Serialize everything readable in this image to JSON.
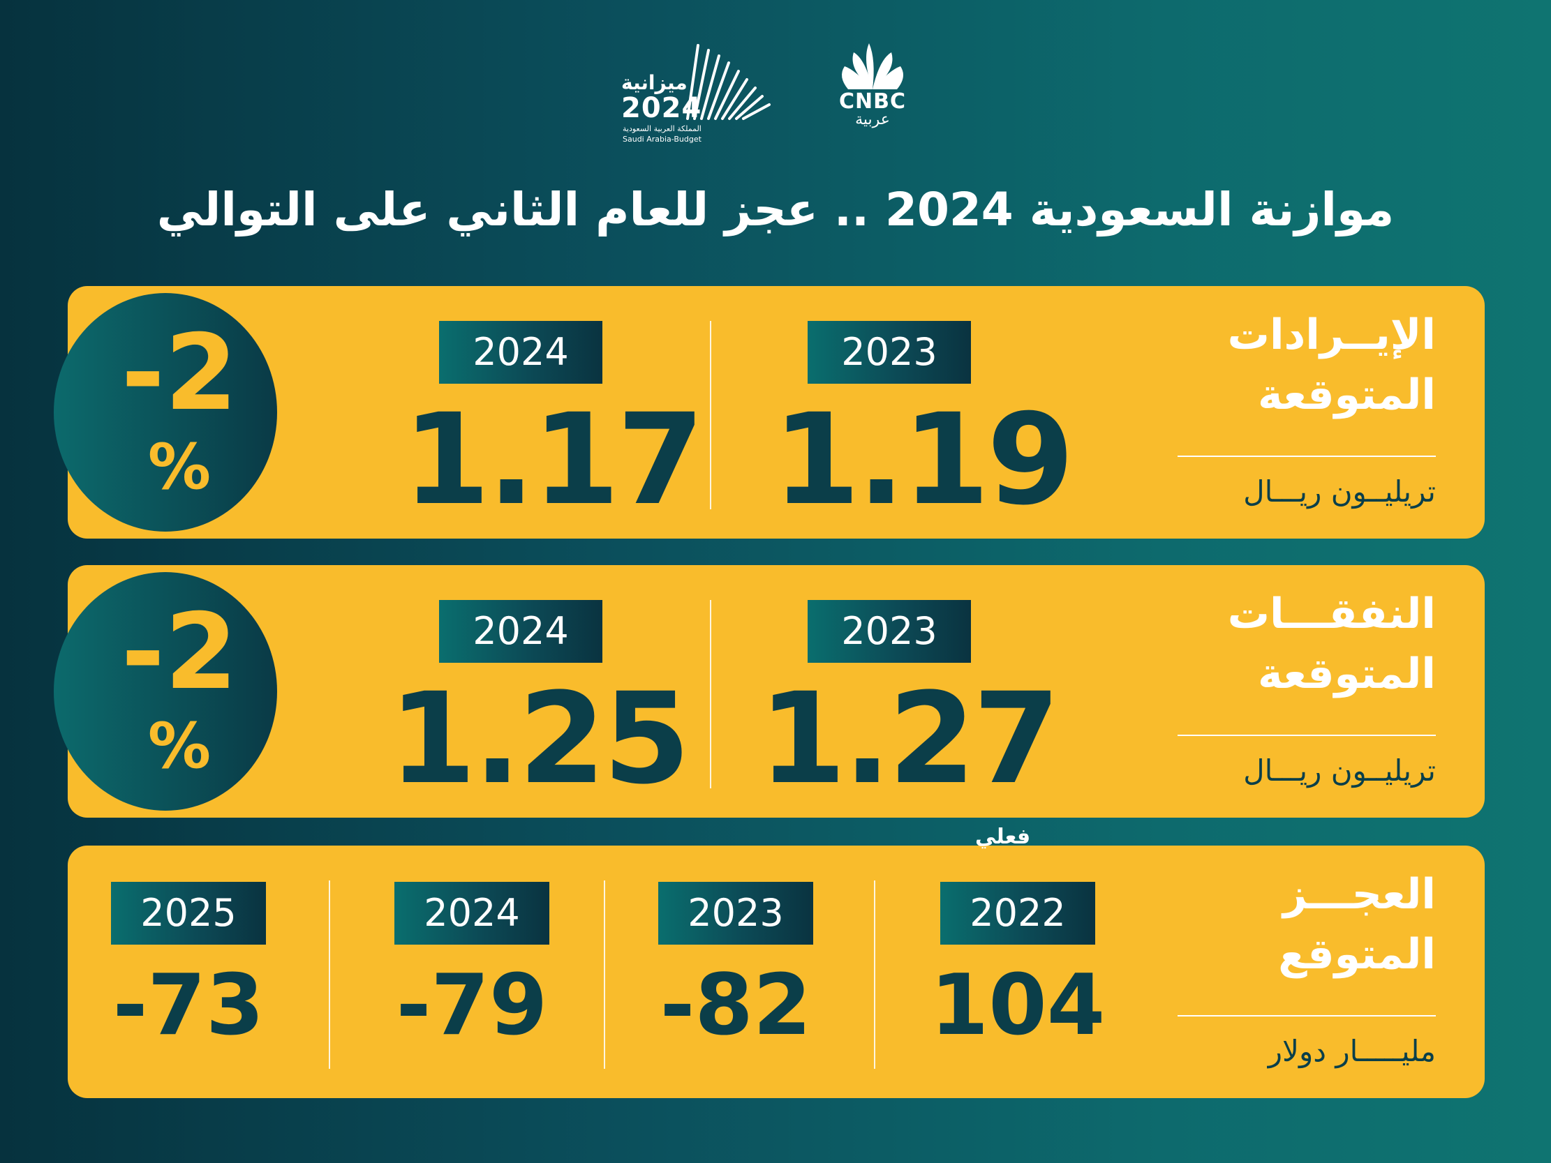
{
  "logos": {
    "budget": {
      "arabic": "ميزانية",
      "year": "2024",
      "sub_ar": "المملكة العربية السعودية",
      "sub_en": "Saudi Arabia-Budget"
    },
    "cnbc": {
      "text": "CNBC",
      "arabic": "عربية"
    }
  },
  "title": "موازنة السعودية 2024 .. عجز للعام الثاني على التوالي",
  "revenue": {
    "label_line1": "الإيــرادات",
    "label_line2": "المتوقعة",
    "unit": "تريليــون ريـــال",
    "col_2023": {
      "year": "2023",
      "value": "1.19"
    },
    "col_2024": {
      "year": "2024",
      "value": "1.17"
    },
    "change_num": "-2",
    "change_sign": "%"
  },
  "expense": {
    "label_line1": "النفقـــات",
    "label_line2": "المتوقعة",
    "unit": "تريليــون ريـــال",
    "col_2023": {
      "year": "2023",
      "value": "1.27"
    },
    "col_2024": {
      "year": "2024",
      "value": "1.25"
    },
    "change_num": "-2",
    "change_sign": "%"
  },
  "deficit": {
    "label_line1": "العجـــز",
    "label_line2": "المتوقع",
    "unit": "مليـــــار دولار",
    "actual_note": "فعلي",
    "cols": [
      {
        "year": "2022",
        "value": "104"
      },
      {
        "year": "2023",
        "value": "-82"
      },
      {
        "year": "2024",
        "value": "-79"
      },
      {
        "year": "2025",
        "value": "-73"
      }
    ]
  },
  "colors": {
    "card": "#f9bc2c",
    "dark_teal": "#0b3e49",
    "bg_left": "#06323e",
    "bg_right": "#0f7471"
  }
}
